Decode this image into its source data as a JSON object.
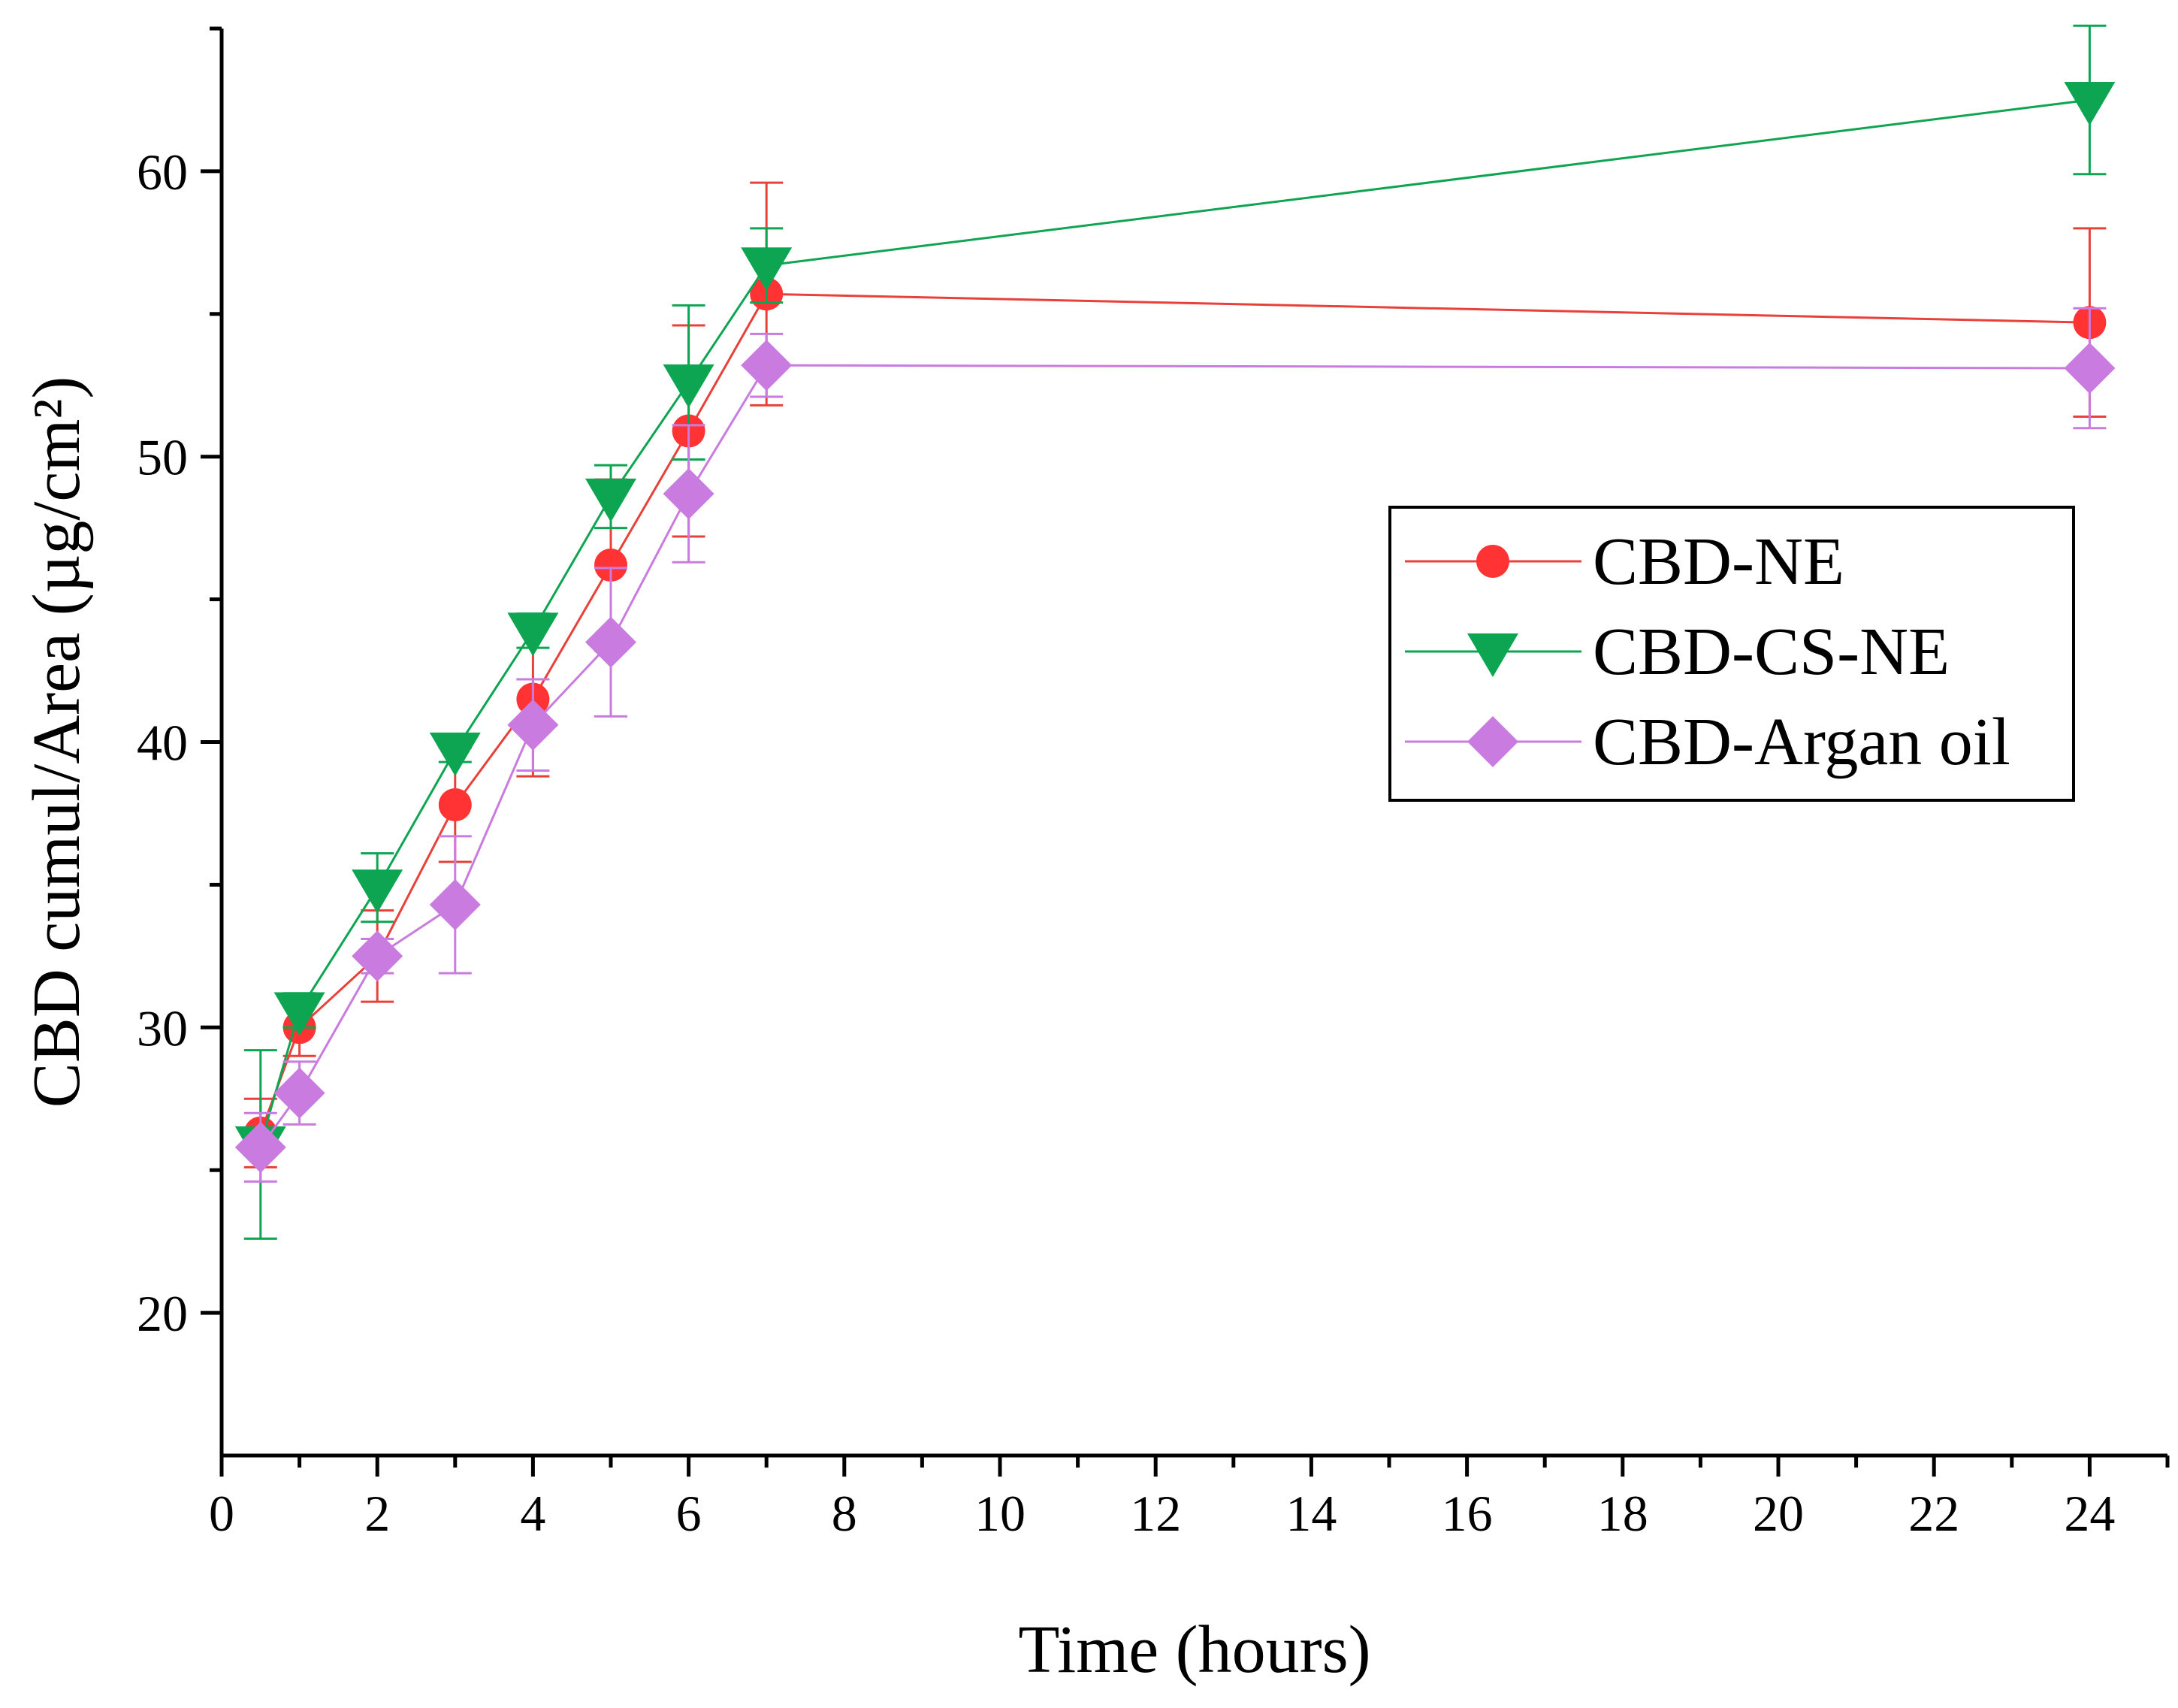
{
  "chart_data": {
    "type": "line",
    "title": "",
    "xlabel": "Time (hours)",
    "ylabel": "CBD cumul/Area (µg/cm²)",
    "xlim": [
      0,
      25
    ],
    "ylim": [
      15,
      65
    ],
    "xticks": [
      "0",
      "2",
      "4",
      "6",
      "8",
      "10",
      "12",
      "14",
      "16",
      "18",
      "20",
      "22",
      "24"
    ],
    "yticks": [
      "20",
      "30",
      "40",
      "50",
      "60"
    ],
    "legend_position": "right-middle",
    "x": [
      0.5,
      1,
      2,
      3,
      4,
      5,
      6,
      7,
      24
    ],
    "series": [
      {
        "name": "CBD-NE",
        "color": "#ff3333",
        "line_color": "#e8413a",
        "marker": "circle",
        "values": [
          26.3,
          30.0,
          32.5,
          37.8,
          41.5,
          46.2,
          50.9,
          55.7,
          54.7
        ],
        "errors": [
          1.2,
          1.0,
          1.6,
          2.0,
          2.7,
          3.0,
          3.7,
          3.9,
          3.3
        ]
      },
      {
        "name": "CBD-CS-NE",
        "color": "#0ea552",
        "line_color": "#0ea552",
        "marker": "triangle-down",
        "values": [
          25.9,
          30.6,
          34.9,
          39.7,
          43.9,
          48.6,
          52.6,
          56.7,
          62.5
        ],
        "errors": [
          3.3,
          0.6,
          1.2,
          0.4,
          0.6,
          1.1,
          2.7,
          1.3,
          2.6
        ]
      },
      {
        "name": "CBD-Argan oil",
        "color": "#c97be0",
        "line_color": "#c97be0",
        "marker": "diamond",
        "values": [
          25.8,
          27.7,
          32.5,
          34.3,
          40.6,
          43.5,
          48.7,
          53.2,
          53.1
        ],
        "errors": [
          1.2,
          1.1,
          0.6,
          2.4,
          1.6,
          2.6,
          2.4,
          1.1,
          2.1
        ]
      }
    ]
  }
}
